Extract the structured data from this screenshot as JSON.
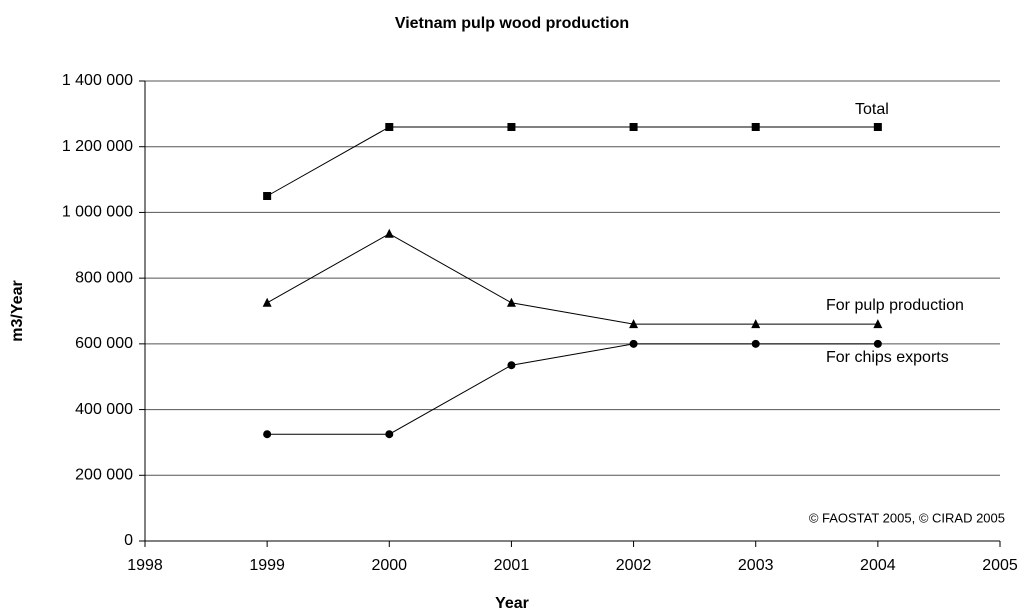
{
  "chart_data": {
    "type": "line",
    "title": "Vietnam pulp wood production",
    "x_label": "Year",
    "y_label": "m3/Year",
    "annotation": "© FAOSTAT 2005, © CIRAD 2005",
    "x": [
      1999,
      2000,
      2001,
      2002,
      2003,
      2004
    ],
    "series": [
      {
        "name": "Total",
        "color": "#000000",
        "marker": "square",
        "values": [
          1050000,
          1260000,
          1260000,
          1260000,
          1260000,
          1260000
        ]
      },
      {
        "name": "For pulp production",
        "color": "#000000",
        "marker": "triangle",
        "values": [
          725000,
          935000,
          725000,
          660000,
          660000,
          660000
        ]
      },
      {
        "name": "For chips exports",
        "color": "#000000",
        "marker": "circle",
        "values": [
          325000,
          325000,
          535000,
          600000,
          600000,
          600000
        ]
      }
    ],
    "xlim": [
      1998,
      2005
    ],
    "xticks": [
      1998,
      1999,
      2000,
      2001,
      2002,
      2003,
      2004,
      2005
    ],
    "ylim": [
      0,
      1400000
    ],
    "yticks": [
      0,
      {
        "value": 200000,
        "label": "200 000"
      },
      {
        "value": 400000,
        "label": "400 000"
      },
      {
        "value": 600000,
        "label": "600 000"
      },
      {
        "value": 800000,
        "label": "800 000"
      },
      {
        "value": 1000000,
        "label": "1 000 000"
      },
      {
        "value": 1200000,
        "label": "1 200 000"
      },
      {
        "value": 1400000,
        "label": "1 400 000"
      }
    ],
    "grid": true
  }
}
